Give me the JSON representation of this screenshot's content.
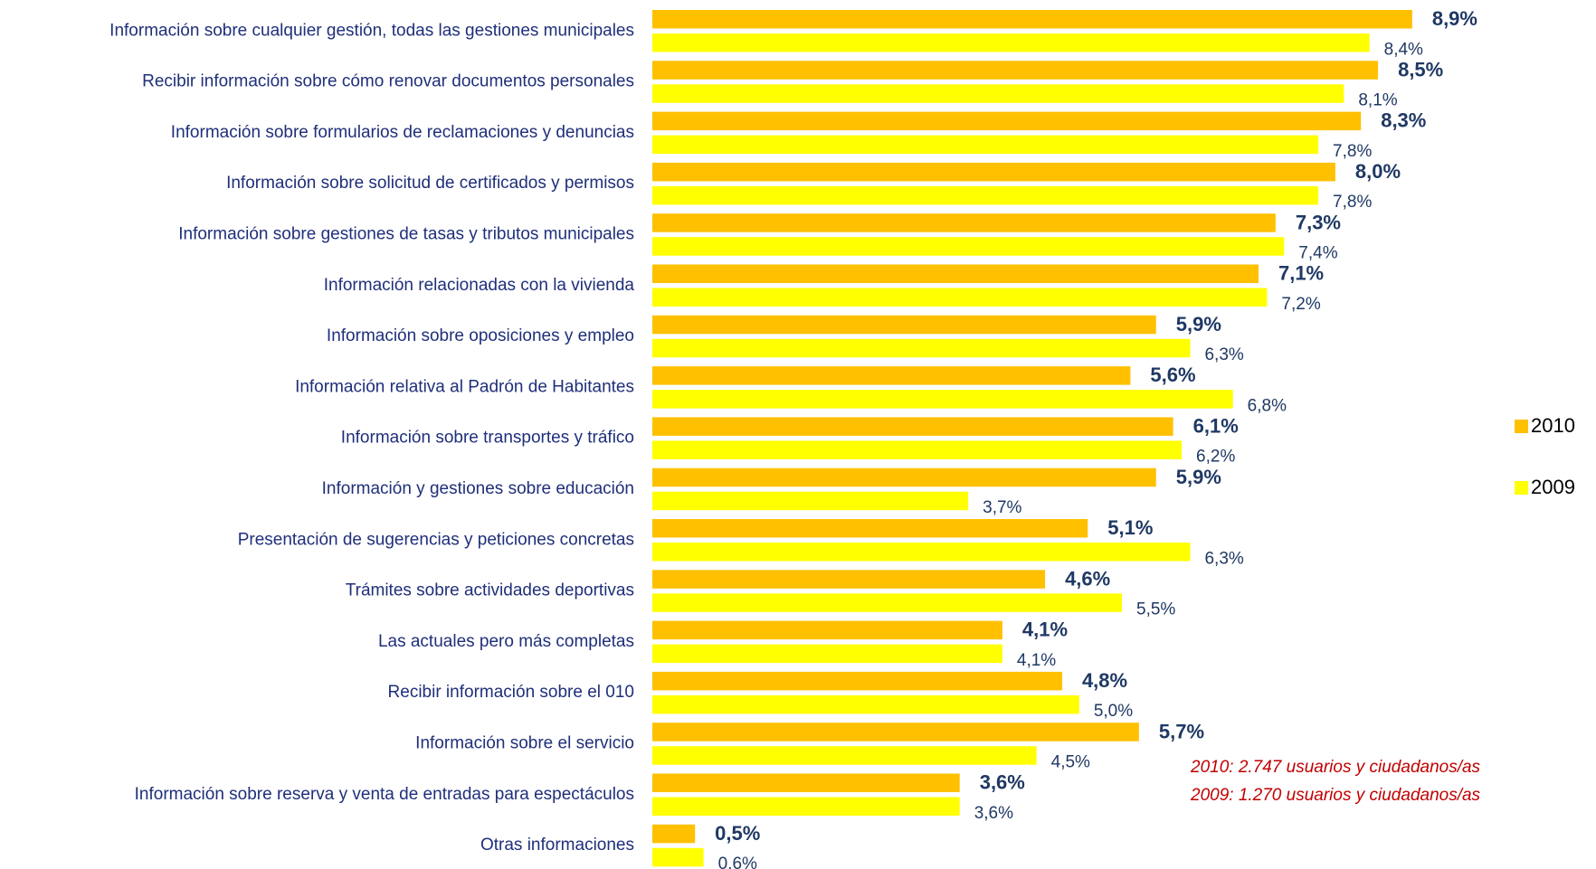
{
  "chart_data": {
    "type": "barh",
    "categories": [
      "Información sobre cualquier gestión, todas las gestiones municipales",
      "Recibir información sobre cómo renovar documentos personales",
      "Información sobre formularios de reclamaciones y denuncias",
      "Información sobre solicitud de certificados y permisos",
      "Información sobre gestiones de tasas y tributos municipales",
      "Información relacionadas con la vivienda",
      "Información sobre oposiciones y empleo",
      "Información relativa al Padrón de Habitantes",
      "Información sobre transportes y tráfico",
      "Información y gestiones sobre educación",
      "Presentación de sugerencias y peticiones concretas",
      "Trámites sobre actividades deportivas",
      "Las actuales pero más completas",
      "Recibir información sobre el 010",
      "Información sobre el servicio",
      "Información sobre reserva y venta de entradas para espectáculos",
      "Otras informaciones"
    ],
    "series": [
      {
        "name": "2010",
        "color": "#ffc000",
        "values": [
          8.9,
          8.5,
          8.3,
          8.0,
          7.3,
          7.1,
          5.9,
          5.6,
          6.1,
          5.9,
          5.1,
          4.6,
          4.1,
          4.8,
          5.7,
          3.6,
          0.5
        ],
        "value_labels": [
          "8,9%",
          "8,5%",
          "8,3%",
          "8,0%",
          "7,3%",
          "7,1%",
          "5,9%",
          "5,6%",
          "6,1%",
          "5,9%",
          "5,1%",
          "4,6%",
          "4,1%",
          "4,8%",
          "5,7%",
          "3,6%",
          "0,5%"
        ]
      },
      {
        "name": "2009",
        "color": "#ffff00",
        "values": [
          8.4,
          8.1,
          7.8,
          7.8,
          7.4,
          7.2,
          6.3,
          6.8,
          6.2,
          3.7,
          6.3,
          5.5,
          4.1,
          5.0,
          4.5,
          3.6,
          0.6
        ],
        "value_labels": [
          "8,4%",
          "8,1%",
          "7,8%",
          "7,8%",
          "7,4%",
          "7,2%",
          "6,3%",
          "6,8%",
          "6,2%",
          "3,7%",
          "6,3%",
          "5,5%",
          "4,1%",
          "5,0%",
          "4,5%",
          "3,6%",
          "0.6%"
        ]
      }
    ],
    "xlim": [
      0,
      11
    ],
    "legend": "right",
    "annotations": [
      "2010: 2.747 usuarios y  ciudadanos/as",
      "2009: 1.270 usuarios y ciudadanos/as"
    ]
  }
}
